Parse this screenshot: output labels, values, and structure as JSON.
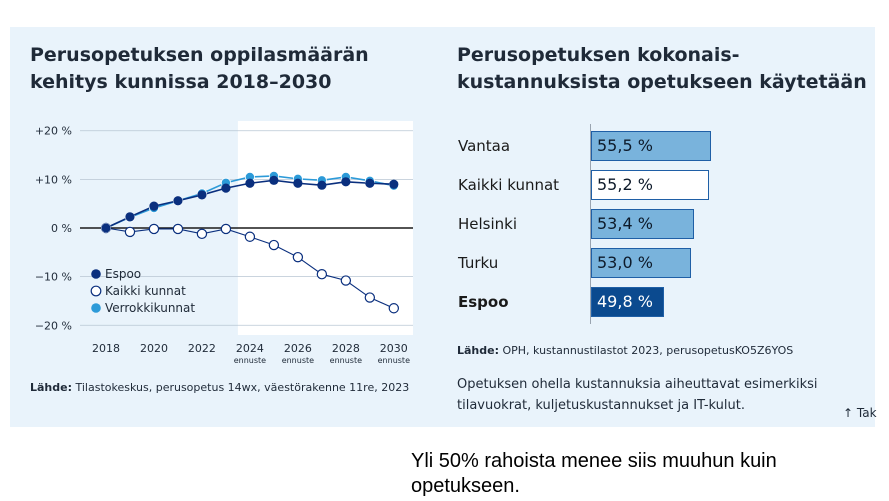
{
  "left_panel": {
    "title_line1": "Perusopetuksen oppilasmäärän",
    "title_line2": "kehitys kunnissa 2018–2030",
    "source_label": "Lähde:",
    "source_text": " Tilastokeskus, perusopetus 14wx, väestörakenne 11re, 2023"
  },
  "right_panel": {
    "title_line1": "Perusopetuksen kokonais-",
    "title_line2": "kustannuksista opetukseen käytetään",
    "source_label": "Lähde:",
    "source_text": " OPH, kustannustilastot 2023, perusopetusKO5Z6YOS",
    "note_line1": "Opetuksen ohella kustannuksia aiheuttavat esimerkiksi",
    "note_line2": "tilavuokrat, kuljetuskustannukset ja IT-kulut.",
    "back_link": "↑ Tak"
  },
  "caption": {
    "line1": "Yli 50% rahoista menee siis muuhun kuin",
    "line2": "opetukseen."
  },
  "colors": {
    "espoo": "#0a2f7e",
    "kaikki_kunnat": "#ffffff",
    "verrokkikunnat": "#2c9ad8",
    "bar_light": "#79b3dc",
    "bar_espoo": "#0b4a8f",
    "forecast_bg": "#ffffff",
    "panel_bg": "#e9f3fb"
  },
  "chart_data": [
    {
      "type": "line",
      "title": "Perusopetuksen oppilasmäärän kehitys kunnissa 2018–2030",
      "x": [
        2018,
        2019,
        2020,
        2021,
        2022,
        2023,
        2024,
        2025,
        2026,
        2027,
        2028,
        2029,
        2030
      ],
      "xticks": [
        {
          "value": 2018,
          "label": "2018",
          "sub": ""
        },
        {
          "value": 2020,
          "label": "2020",
          "sub": ""
        },
        {
          "value": 2022,
          "label": "2022",
          "sub": ""
        },
        {
          "value": 2024,
          "label": "2024",
          "sub": "ennuste"
        },
        {
          "value": 2026,
          "label": "2026",
          "sub": "ennuste"
        },
        {
          "value": 2028,
          "label": "2028",
          "sub": "ennuste"
        },
        {
          "value": 2030,
          "label": "2030",
          "sub": "ennuste"
        }
      ],
      "yticks": [
        {
          "value": 20,
          "label": "+20 %"
        },
        {
          "value": 10,
          "label": "+10 %"
        },
        {
          "value": 0,
          "label": "0 %"
        },
        {
          "value": -10,
          "label": "−10 %"
        },
        {
          "value": -20,
          "label": "−20 %"
        }
      ],
      "ylim": [
        -22,
        22
      ],
      "xlim": [
        2017.5,
        2030.8
      ],
      "forecast_start": 2023.5,
      "legend_position": "bottom-left",
      "series": [
        {
          "name": "Espoo",
          "key": "espoo",
          "values": [
            0,
            2.3,
            4.5,
            5.6,
            6.8,
            8.2,
            9.2,
            9.8,
            9.2,
            8.8,
            9.5,
            9.2,
            9.0
          ]
        },
        {
          "name": "Kaikki kunnat",
          "key": "kaikki_kunnat",
          "values": [
            0,
            -0.8,
            -0.2,
            -0.2,
            -1.2,
            -0.2,
            -1.8,
            -3.5,
            -6.0,
            -9.5,
            -10.8,
            -14.3,
            -16.5
          ]
        },
        {
          "name": "Verrokkikunnat",
          "key": "verrokkikunnat",
          "values": [
            0,
            2.2,
            4.1,
            5.6,
            7.1,
            9.3,
            10.5,
            10.7,
            10.1,
            9.8,
            10.5,
            9.7,
            8.7
          ]
        }
      ]
    },
    {
      "type": "bar",
      "title": "Perusopetuksen kokonaiskustannuksista opetukseen käytetään",
      "categories": [
        "Vantaa",
        "Kaikki kunnat",
        "Helsinki",
        "Turku",
        "Espoo"
      ],
      "values": [
        55.5,
        55.2,
        53.4,
        53.0,
        49.8
      ],
      "labels": [
        "55,5 %",
        "55,2 %",
        "53,4 %",
        "53,0 %",
        "49,8 %"
      ],
      "styles": [
        "light",
        "white",
        "light",
        "light",
        "espoo"
      ],
      "bold_categories": [
        "Espoo"
      ],
      "unit": "%"
    }
  ]
}
